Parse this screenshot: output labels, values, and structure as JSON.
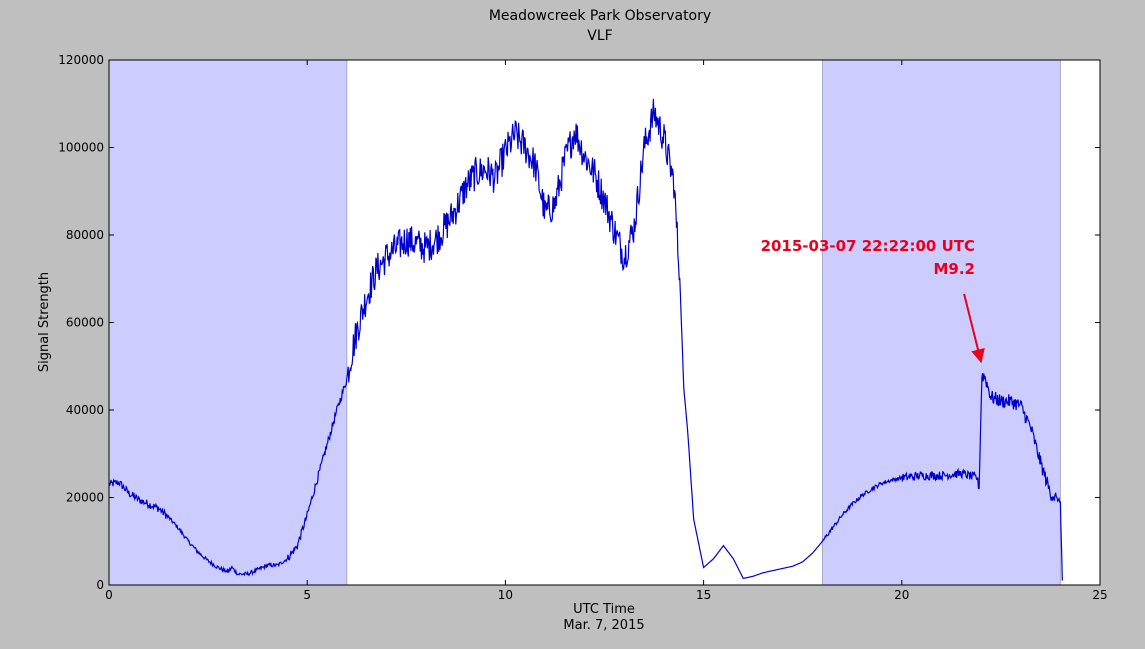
{
  "chart_data": {
    "type": "line",
    "title": "Meadowcreek Park Observatory",
    "subtitle": "VLF",
    "xlabel": "UTC Time",
    "xlabel2": "Mar. 7, 2015",
    "ylabel": "Signal Strength",
    "xlim": [
      0,
      25
    ],
    "ylim": [
      0,
      120000
    ],
    "xticks": [
      0,
      5,
      10,
      15,
      20,
      25
    ],
    "xtick_labels": [
      "0",
      "5",
      "10",
      "15",
      "20",
      "25"
    ],
    "yticks": [
      0,
      20000,
      40000,
      60000,
      80000,
      100000,
      120000
    ],
    "ytick_labels": [
      "0",
      "20000",
      "40000",
      "60000",
      "80000",
      "100000",
      "120000"
    ],
    "grid": false,
    "night_shading": [
      [
        0,
        6
      ],
      [
        18,
        24
      ]
    ],
    "series": [
      {
        "color": "#0000cc",
        "points": [
          [
            0,
            23000
          ],
          [
            0.25,
            23500
          ],
          [
            0.5,
            21000
          ],
          [
            0.75,
            19500
          ],
          [
            1,
            18500
          ],
          [
            1.25,
            17500
          ],
          [
            1.5,
            15500
          ],
          [
            1.75,
            13000
          ],
          [
            2,
            10000
          ],
          [
            2.25,
            7500
          ],
          [
            2.5,
            5500
          ],
          [
            2.75,
            4000
          ],
          [
            3,
            3000
          ],
          [
            3.1,
            4000
          ],
          [
            3.25,
            2500
          ],
          [
            3.5,
            2500
          ],
          [
            3.75,
            3500
          ],
          [
            4,
            4500
          ],
          [
            4.25,
            4500
          ],
          [
            4.5,
            6000
          ],
          [
            4.75,
            9000
          ],
          [
            5,
            16000
          ],
          [
            5.25,
            24000
          ],
          [
            5.5,
            32000
          ],
          [
            5.75,
            40000
          ],
          [
            6,
            47000
          ],
          [
            6.1,
            52000
          ],
          [
            6.25,
            58000
          ],
          [
            6.5,
            66000
          ],
          [
            6.75,
            72000
          ],
          [
            7,
            75000
          ],
          [
            7.25,
            77000
          ],
          [
            7.5,
            79000
          ],
          [
            7.75,
            78000
          ],
          [
            8,
            77000
          ],
          [
            8.25,
            79000
          ],
          [
            8.5,
            82000
          ],
          [
            8.75,
            86000
          ],
          [
            9,
            91000
          ],
          [
            9.25,
            94000
          ],
          [
            9.5,
            95000
          ],
          [
            9.75,
            93000
          ],
          [
            10,
            99000
          ],
          [
            10.25,
            103000
          ],
          [
            10.5,
            100000
          ],
          [
            10.75,
            96000
          ],
          [
            11,
            85000
          ],
          [
            11.25,
            87000
          ],
          [
            11.5,
            97000
          ],
          [
            11.75,
            104000
          ],
          [
            12,
            98000
          ],
          [
            12.25,
            94000
          ],
          [
            12.5,
            88000
          ],
          [
            12.75,
            81000
          ],
          [
            13,
            75000
          ],
          [
            13.25,
            82000
          ],
          [
            13.5,
            100000
          ],
          [
            13.75,
            108000
          ],
          [
            14,
            102000
          ],
          [
            14.25,
            92000
          ],
          [
            14.4,
            70000
          ],
          [
            14.5,
            45000
          ],
          [
            14.6,
            35000
          ],
          [
            14.75,
            15000
          ],
          [
            15,
            4000
          ],
          [
            15.25,
            6000
          ],
          [
            15.5,
            9000
          ],
          [
            15.75,
            6000
          ],
          [
            16,
            1500
          ],
          [
            16.25,
            2000
          ],
          [
            16.5,
            2800
          ],
          [
            16.75,
            3300
          ],
          [
            17,
            3800
          ],
          [
            17.25,
            4300
          ],
          [
            17.5,
            5300
          ],
          [
            17.75,
            7300
          ],
          [
            18,
            10000
          ],
          [
            18.25,
            13000
          ],
          [
            18.5,
            16000
          ],
          [
            18.75,
            18500
          ],
          [
            19,
            20500
          ],
          [
            19.25,
            22000
          ],
          [
            19.5,
            23300
          ],
          [
            19.75,
            24000
          ],
          [
            20,
            24500
          ],
          [
            20.5,
            25000
          ],
          [
            21,
            25000
          ],
          [
            21.5,
            25500
          ],
          [
            21.9,
            24500
          ],
          [
            21.95,
            22000
          ],
          [
            22.02,
            48000
          ],
          [
            22.1,
            47500
          ],
          [
            22.25,
            43000
          ],
          [
            22.5,
            42000
          ],
          [
            22.75,
            42000
          ],
          [
            23,
            41000
          ],
          [
            23.25,
            36000
          ],
          [
            23.5,
            28000
          ],
          [
            23.75,
            21000
          ],
          [
            24,
            19000
          ],
          [
            24.05,
            1000
          ]
        ]
      }
    ],
    "annotation": {
      "line1": "2015-03-07 22:22:00 UTC",
      "line2": "M9.2",
      "color": "#e8001c",
      "target": [
        22.0,
        51000
      ]
    }
  }
}
